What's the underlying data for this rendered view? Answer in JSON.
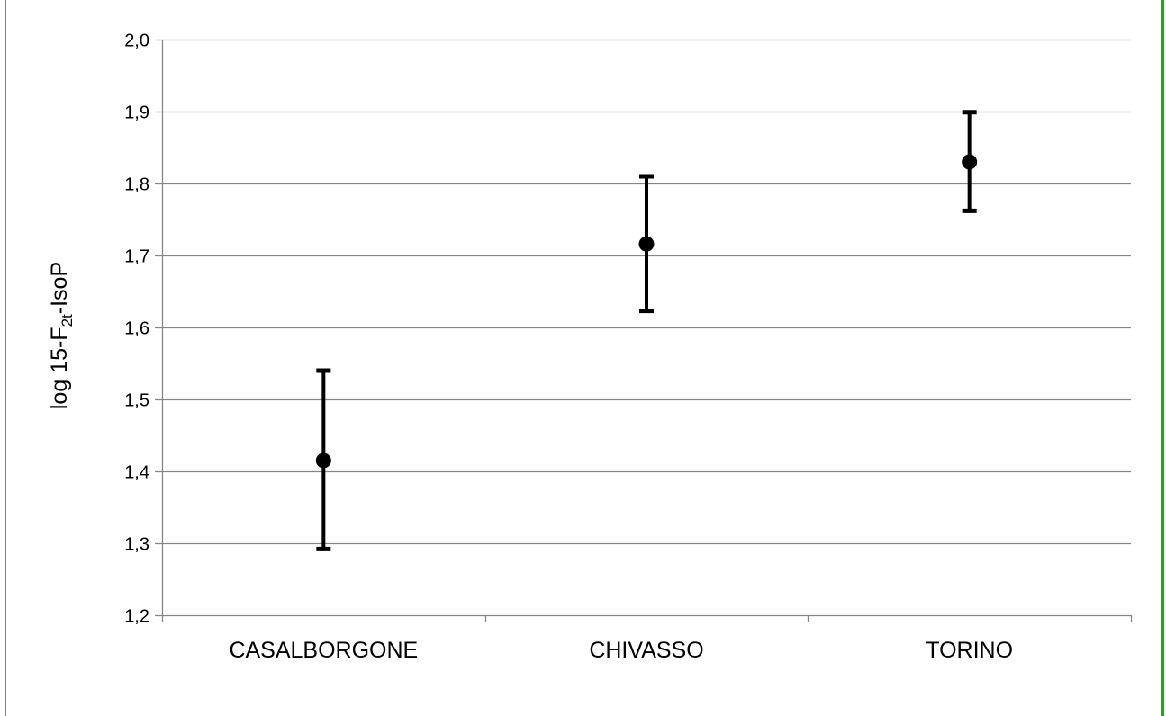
{
  "chart_data": {
    "type": "scatter",
    "title": "",
    "xlabel": "",
    "ylabel": {
      "prefix": "log 15-F",
      "subscript": "2t",
      "suffix": "-IsoP"
    },
    "categories": [
      "CASALBORGONE",
      "CHIVASSO",
      "TORINO"
    ],
    "series": [
      {
        "values": [
          1.415,
          1.716,
          1.83
        ],
        "error_low": [
          1.292,
          1.623,
          1.762
        ],
        "error_high": [
          1.54,
          1.81,
          1.899
        ]
      }
    ],
    "ylim": [
      1.2,
      2.0
    ],
    "yticks": [
      "1,2",
      "1,3",
      "1,4",
      "1,5",
      "1,6",
      "1,7",
      "1,8",
      "1,9",
      "2,0"
    ],
    "ytick_values": [
      1.2,
      1.3,
      1.4,
      1.5,
      1.6,
      1.7,
      1.8,
      1.9,
      2.0
    ],
    "grid": true,
    "legend": "none",
    "colors": {
      "marker": "#000000",
      "grid": "#868686",
      "axis": "#868686",
      "border": "#808080",
      "right_edge": "#00c000"
    }
  }
}
